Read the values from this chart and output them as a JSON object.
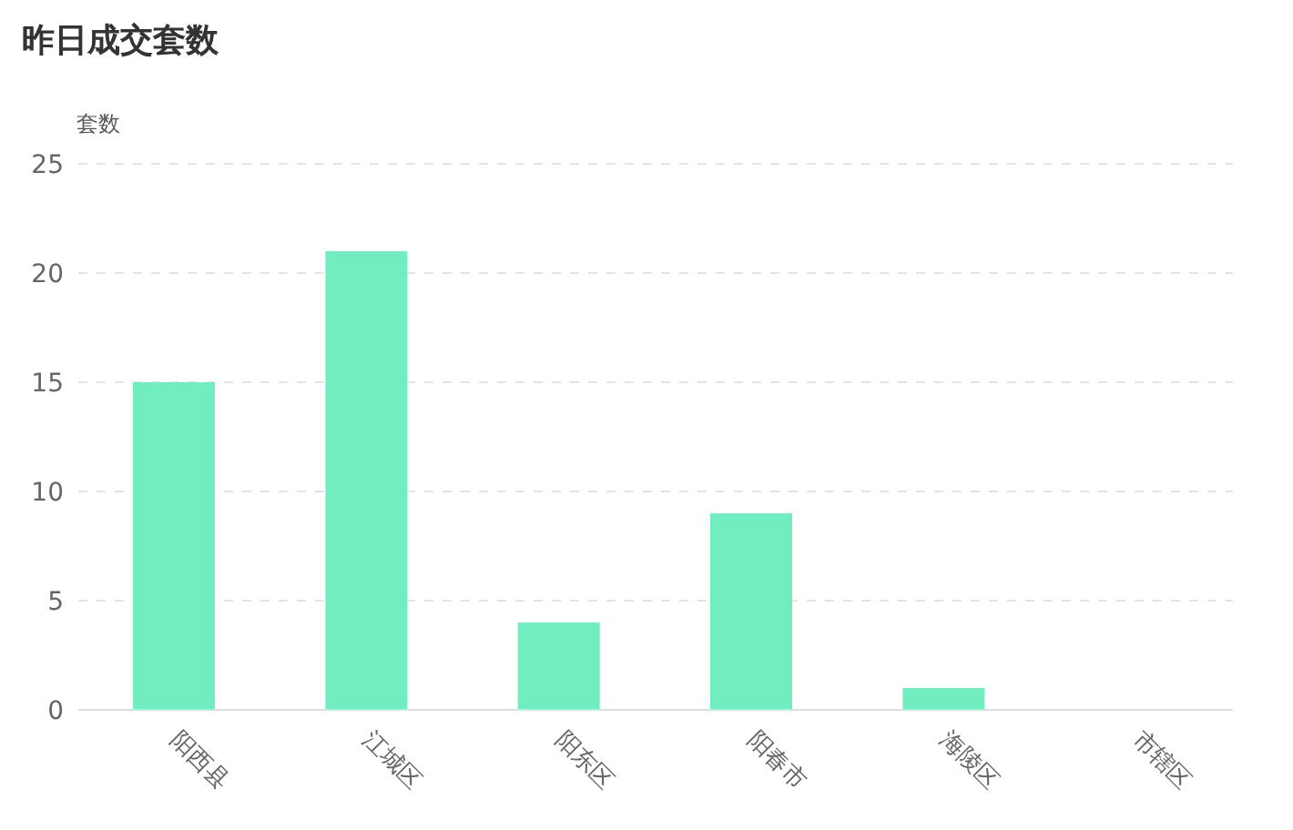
{
  "chart_data": {
    "type": "bar",
    "title": "昨日成交套数",
    "ylabel": "套数",
    "categories": [
      "阳西县",
      "江城区",
      "阳东区",
      "阳春市",
      "海陵区",
      "市辖区"
    ],
    "values": [
      15,
      21,
      4,
      9,
      1,
      0
    ],
    "color": "#72edbf",
    "ylim": [
      0,
      25
    ],
    "yticks": [
      0,
      5,
      10,
      15,
      20,
      25
    ],
    "grid": "y",
    "legend": false
  }
}
